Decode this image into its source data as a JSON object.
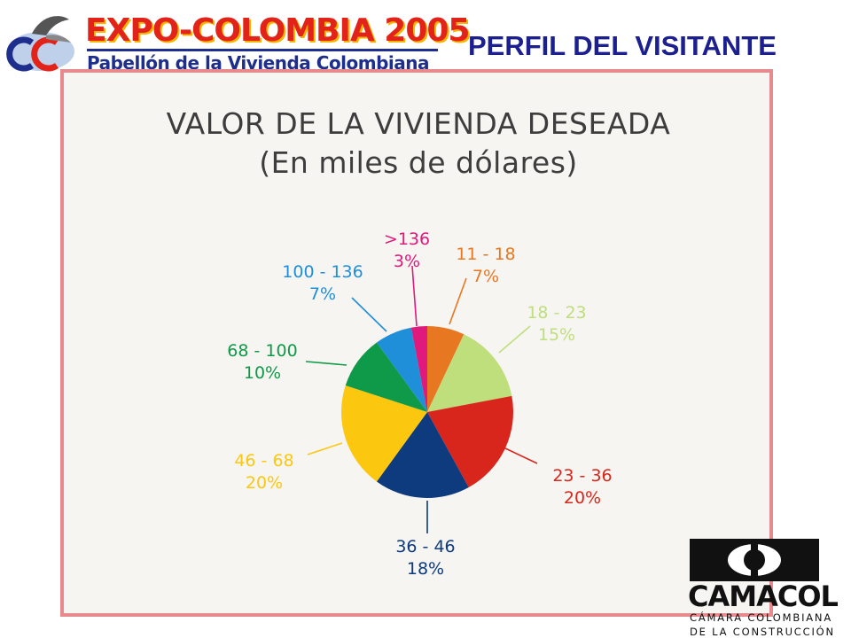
{
  "header": {
    "logo_title": "EXPO-COLOMBIA 2005",
    "logo_subtitle": "Pabellón de la Vivienda Colombiana",
    "section_title": "PERFIL DEL VISITANTE"
  },
  "colors": {
    "frame_border": "#e78a8e",
    "section_title": "#1b1f8f"
  },
  "chart_data": {
    "type": "pie",
    "title": "VALOR DE LA VIVIENDA DESEADA",
    "subtitle": "(En miles de dólares)",
    "slices": [
      {
        "label": "11 - 18",
        "value": 7,
        "display": "7%",
        "color": "#e87722"
      },
      {
        "label": "18 - 23",
        "value": 15,
        "display": "15%",
        "color": "#bfdf7d"
      },
      {
        "label": "23 - 36",
        "value": 20,
        "display": "20%",
        "color": "#d9261c"
      },
      {
        "label": "36 - 46",
        "value": 18,
        "display": "18%",
        "color": "#0e3a7e"
      },
      {
        "label": "46 - 68",
        "value": 20,
        "display": "20%",
        "color": "#fcc70f"
      },
      {
        "label": "68 - 100",
        "value": 10,
        "display": "10%",
        "color": "#0e9a48"
      },
      {
        "label": "100 - 136",
        "value": 7,
        "display": "7%",
        "color": "#1e8fd8"
      },
      {
        "label": ">136",
        "value": 3,
        "display": "3%",
        "color": "#e0197c"
      }
    ]
  },
  "footer": {
    "camacol_name": "CAMACOL",
    "camacol_line1": "CÁMARA COLOMBIANA",
    "camacol_line2": "DE LA CONSTRUCCIÓN"
  }
}
